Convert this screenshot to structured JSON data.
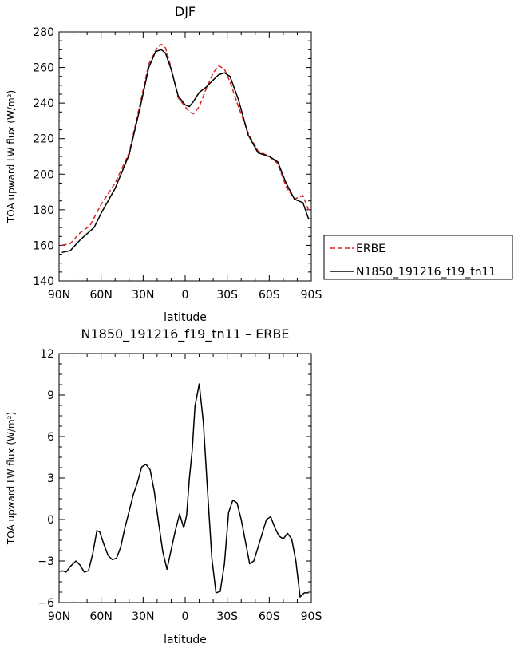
{
  "chart_data": [
    {
      "type": "line",
      "title": "DJF",
      "xlabel": "latitude",
      "ylabel": "TOA upward LW flux (W/m²)",
      "xlim": [
        -90,
        90
      ],
      "ylim": [
        140,
        280
      ],
      "xticks": [
        {
          "value": -90,
          "label": "90N"
        },
        {
          "value": -60,
          "label": "60N"
        },
        {
          "value": -30,
          "label": "30N"
        },
        {
          "value": 0,
          "label": "0"
        },
        {
          "value": 30,
          "label": "30S"
        },
        {
          "value": 60,
          "label": "60S"
        },
        {
          "value": 90,
          "label": "90S"
        }
      ],
      "yticks": [
        140,
        160,
        180,
        200,
        220,
        240,
        260,
        280
      ],
      "legend_position": "right",
      "series": [
        {
          "name": "ERBE",
          "color": "#d62728",
          "dash": "dashed",
          "x": [
            -88,
            -82,
            -75,
            -68,
            -60,
            -50,
            -40,
            -32,
            -26,
            -20,
            -17,
            -14,
            -10,
            -5,
            0,
            3,
            6,
            10,
            15,
            20,
            24,
            28,
            32,
            38,
            45,
            52,
            60,
            66,
            72,
            78,
            84,
            88
          ],
          "y": [
            160,
            161,
            167,
            171,
            183,
            195,
            212,
            240,
            262,
            271,
            273,
            271,
            260,
            243,
            238,
            235,
            234,
            238,
            248,
            257,
            261,
            259,
            252,
            238,
            223,
            213,
            210,
            206,
            193,
            186,
            188,
            180
          ]
        },
        {
          "name": "N1850_191216_f19_tn11",
          "color": "#000000",
          "dash": "solid",
          "x": [
            -88,
            -82,
            -75,
            -65,
            -60,
            -50,
            -40,
            -32,
            -26,
            -21,
            -17,
            -14,
            -10,
            -5,
            0,
            3,
            6,
            10,
            15,
            20,
            24,
            28,
            32,
            38,
            45,
            52,
            60,
            66,
            72,
            78,
            84,
            88
          ],
          "y": [
            156,
            157,
            163,
            170,
            178,
            192,
            211,
            238,
            260,
            269,
            270,
            268,
            259,
            244,
            239,
            238,
            241,
            246,
            249,
            253,
            256,
            257,
            255,
            242,
            222,
            212,
            210,
            207,
            195,
            186,
            184,
            175
          ]
        }
      ]
    },
    {
      "type": "line",
      "title": "N1850_191216_f19_tn11 – ERBE",
      "xlabel": "latitude",
      "ylabel": "TOA upward LW flux (W/m²)",
      "xlim": [
        -90,
        90
      ],
      "ylim": [
        -6,
        12
      ],
      "xticks": [
        {
          "value": -90,
          "label": "90N"
        },
        {
          "value": -60,
          "label": "60N"
        },
        {
          "value": -30,
          "label": "30N"
        },
        {
          "value": 0,
          "label": "0"
        },
        {
          "value": 30,
          "label": "30S"
        },
        {
          "value": 60,
          "label": "60S"
        },
        {
          "value": 90,
          "label": "90S"
        }
      ],
      "yticks": [
        -6,
        -3,
        0,
        3,
        6,
        9,
        12
      ],
      "series": [
        {
          "color": "#000000",
          "dash": "solid",
          "x": [
            -88,
            -85,
            -82,
            -78,
            -75,
            -72,
            -69,
            -66,
            -63,
            -61,
            -58,
            -55,
            -52,
            -49,
            -46,
            -43,
            -40,
            -37,
            -34,
            -31,
            -28,
            -25,
            -22,
            -19,
            -16,
            -13,
            -10,
            -7,
            -4,
            -1,
            1,
            3,
            5,
            7,
            10,
            13,
            16,
            19,
            22,
            25,
            28,
            31,
            34,
            37,
            40,
            43,
            46,
            49,
            52,
            55,
            58,
            61,
            64,
            67,
            70,
            73,
            76,
            79,
            82,
            85,
            88
          ],
          "y": [
            -3.7,
            -3.8,
            -3.4,
            -3.0,
            -3.3,
            -3.8,
            -3.7,
            -2.5,
            -0.8,
            -0.9,
            -1.8,
            -2.6,
            -2.9,
            -2.8,
            -2.0,
            -0.6,
            0.6,
            1.8,
            2.7,
            3.8,
            4.0,
            3.6,
            2.0,
            -0.2,
            -2.3,
            -3.6,
            -2.2,
            -0.8,
            0.4,
            -0.6,
            0.3,
            3.0,
            5.0,
            8.2,
            9.8,
            7.0,
            2.0,
            -2.8,
            -5.3,
            -5.2,
            -3.2,
            0.5,
            1.4,
            1.2,
            0.0,
            -1.6,
            -3.2,
            -3.0,
            -2.0,
            -1.0,
            0.0,
            0.2,
            -0.6,
            -1.2,
            -1.4,
            -1.0,
            -1.4,
            -3.0,
            -5.6,
            -5.3,
            -5.3
          ]
        }
      ]
    }
  ]
}
